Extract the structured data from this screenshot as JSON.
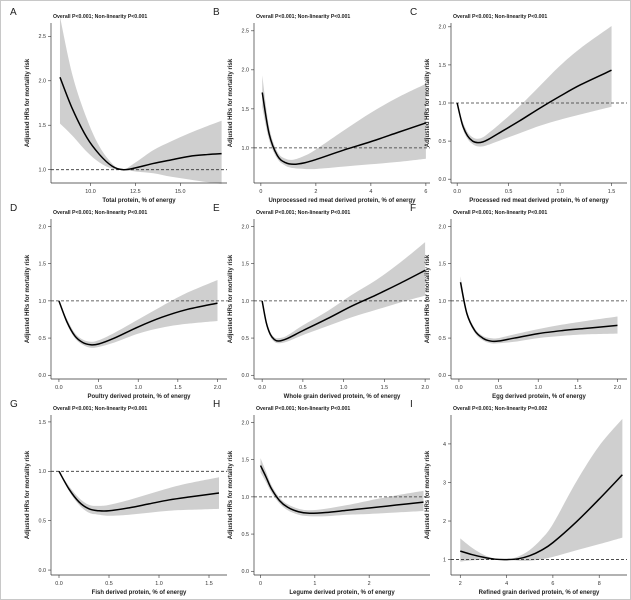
{
  "figure": {
    "ref_hr": 1.0,
    "colors": {
      "ci": "#cfcfcf",
      "curve": "#000000",
      "reference": "#333333"
    }
  },
  "chart_data": [
    {
      "type": "line",
      "panel": "A",
      "stat": "Overall P<0.001; Non-linearity P<0.001",
      "xlabel": "Total protein, % of energy",
      "ylabel": "Adjusted HRs for mortality risk",
      "xlim": [
        7.8,
        17.6
      ],
      "ylim": [
        0.85,
        2.65
      ],
      "xticks": [
        10.0,
        12.5,
        15.0
      ],
      "xtick_labels": [
        "10.0",
        "12.5",
        "15.0"
      ],
      "yticks": [
        1.0,
        1.5,
        2.0,
        2.5
      ],
      "ytick_labels": [
        "1.0",
        "1.5",
        "2.0",
        "2.5"
      ],
      "x": [
        8.3,
        9.0,
        9.8,
        10.5,
        11.2,
        11.8,
        12.5,
        13.5,
        14.5,
        15.5,
        16.5,
        17.3
      ],
      "hr": [
        2.04,
        1.68,
        1.36,
        1.17,
        1.04,
        1.0,
        1.02,
        1.07,
        1.11,
        1.15,
        1.17,
        1.18
      ],
      "lower": [
        1.52,
        1.38,
        1.2,
        1.08,
        1.01,
        1.0,
        0.98,
        0.96,
        0.92,
        0.89,
        0.86,
        0.84
      ],
      "upper": [
        2.72,
        2.06,
        1.57,
        1.26,
        1.07,
        1.0,
        1.08,
        1.22,
        1.32,
        1.41,
        1.49,
        1.55
      ]
    },
    {
      "type": "line",
      "panel": "B",
      "stat": "Overall P<0.001; Non-linearity P<0.001",
      "xlabel": "Unprocessed red meat derived protein, % of energy",
      "ylabel": "Adjusted HRs for mortality risk",
      "xlim": [
        -0.25,
        6.15
      ],
      "ylim": [
        0.55,
        2.6
      ],
      "xticks": [
        0,
        2,
        4,
        6
      ],
      "xtick_labels": [
        "0",
        "2",
        "4",
        "6"
      ],
      "yticks": [
        1.0,
        1.5,
        2.0,
        2.5
      ],
      "ytick_labels": [
        "1.0",
        "1.5",
        "2.0",
        "2.5"
      ],
      "x": [
        0.05,
        0.3,
        0.6,
        0.9,
        1.2,
        1.6,
        2.0,
        3.0,
        4.0,
        5.0,
        6.0
      ],
      "hr": [
        1.71,
        1.18,
        0.9,
        0.81,
        0.79,
        0.81,
        0.85,
        0.97,
        1.08,
        1.2,
        1.32
      ],
      "lower": [
        1.52,
        1.1,
        0.86,
        0.77,
        0.74,
        0.73,
        0.73,
        0.76,
        0.79,
        0.82,
        0.86
      ],
      "upper": [
        1.93,
        1.27,
        0.95,
        0.86,
        0.85,
        0.9,
        0.98,
        1.22,
        1.45,
        1.65,
        1.82
      ]
    },
    {
      "type": "line",
      "panel": "C",
      "stat": "Overall P<0.001; Non-linearity P<0.001",
      "xlabel": "Processed red meat derived protein, % of energy",
      "ylabel": "Adjusted HRs for mortality risk",
      "xlim": [
        -0.06,
        1.65
      ],
      "ylim": [
        -0.05,
        2.05
      ],
      "xticks": [
        0.0,
        0.5,
        1.0,
        1.5
      ],
      "xtick_labels": [
        "0.0",
        "0.5",
        "1.0",
        "1.5"
      ],
      "yticks": [
        0.0,
        0.5,
        1.0,
        1.5,
        2.0
      ],
      "ytick_labels": [
        "0.0",
        "0.5",
        "1.0",
        "1.5",
        "2.0"
      ],
      "x": [
        0.0,
        0.05,
        0.1,
        0.15,
        0.2,
        0.25,
        0.3,
        0.4,
        0.6,
        0.8,
        1.0,
        1.2,
        1.5
      ],
      "hr": [
        1.0,
        0.72,
        0.57,
        0.5,
        0.48,
        0.49,
        0.52,
        0.6,
        0.76,
        0.93,
        1.09,
        1.24,
        1.43
      ],
      "lower": [
        1.0,
        0.68,
        0.53,
        0.46,
        0.43,
        0.43,
        0.45,
        0.5,
        0.6,
        0.7,
        0.78,
        0.85,
        0.95
      ],
      "upper": [
        1.0,
        0.77,
        0.62,
        0.55,
        0.53,
        0.55,
        0.6,
        0.71,
        0.95,
        1.22,
        1.49,
        1.72,
        2.01
      ]
    },
    {
      "type": "line",
      "panel": "D",
      "stat": "Overall P<0.001; Non-linearity P<0.001",
      "xlabel": "Poultry derived protein, % of energy",
      "ylabel": "Adjusted HRs for mortality risk",
      "xlim": [
        -0.1,
        2.12
      ],
      "ylim": [
        -0.05,
        2.1
      ],
      "xticks": [
        0.0,
        0.5,
        1.0,
        1.5,
        2.0
      ],
      "xtick_labels": [
        "0.0",
        "0.5",
        "1.0",
        "1.5",
        "2.0"
      ],
      "yticks": [
        0.0,
        0.5,
        1.0,
        1.5,
        2.0
      ],
      "ytick_labels": [
        "0.0",
        "0.5",
        "1.0",
        "1.5",
        "2.0"
      ],
      "x": [
        0.0,
        0.1,
        0.2,
        0.3,
        0.4,
        0.5,
        0.7,
        1.0,
        1.3,
        1.6,
        2.0
      ],
      "hr": [
        1.0,
        0.72,
        0.53,
        0.44,
        0.41,
        0.42,
        0.5,
        0.65,
        0.78,
        0.88,
        0.97
      ],
      "lower": [
        1.0,
        0.69,
        0.5,
        0.41,
        0.37,
        0.38,
        0.44,
        0.56,
        0.64,
        0.69,
        0.73
      ],
      "upper": [
        1.0,
        0.76,
        0.57,
        0.48,
        0.45,
        0.47,
        0.57,
        0.75,
        0.93,
        1.1,
        1.28
      ]
    },
    {
      "type": "line",
      "panel": "E",
      "stat": "Overall P<0.001; Non-linearity P<0.001",
      "xlabel": "Whole grain derived protein, % of energy",
      "ylabel": "Adjusted HRs for mortality risk",
      "xlim": [
        -0.1,
        2.06
      ],
      "ylim": [
        -0.05,
        2.1
      ],
      "xticks": [
        0.0,
        0.5,
        1.0,
        1.5,
        2.0
      ],
      "xtick_labels": [
        "0.0",
        "0.5",
        "1.0",
        "1.5",
        "2.0"
      ],
      "yticks": [
        0.0,
        0.5,
        1.0,
        1.5,
        2.0
      ],
      "ytick_labels": [
        "0.0",
        "0.5",
        "1.0",
        "1.5",
        "2.0"
      ],
      "x": [
        0.0,
        0.05,
        0.1,
        0.15,
        0.2,
        0.3,
        0.5,
        0.8,
        1.1,
        1.4,
        1.7,
        2.0
      ],
      "hr": [
        1.0,
        0.71,
        0.55,
        0.48,
        0.46,
        0.49,
        0.6,
        0.76,
        0.93,
        1.08,
        1.24,
        1.41
      ],
      "lower": [
        1.0,
        0.68,
        0.52,
        0.45,
        0.43,
        0.45,
        0.54,
        0.66,
        0.78,
        0.88,
        0.98,
        1.07
      ],
      "upper": [
        1.0,
        0.74,
        0.58,
        0.51,
        0.5,
        0.53,
        0.67,
        0.86,
        1.08,
        1.28,
        1.52,
        1.79
      ]
    },
    {
      "type": "line",
      "panel": "F",
      "stat": "Overall P<0.001; Non-linearity P<0.001",
      "xlabel": "Egg derived protein, % of energy",
      "ylabel": "Adjusted HRs for mortality risk",
      "xlim": [
        -0.1,
        2.12
      ],
      "ylim": [
        -0.05,
        2.1
      ],
      "xticks": [
        0.0,
        0.5,
        1.0,
        1.5,
        2.0
      ],
      "xtick_labels": [
        "0.0",
        "0.5",
        "1.0",
        "1.5",
        "2.0"
      ],
      "yticks": [
        0.0,
        0.5,
        1.0,
        1.5,
        2.0
      ],
      "ytick_labels": [
        "0.0",
        "0.5",
        "1.0",
        "1.5",
        "2.0"
      ],
      "x": [
        0.02,
        0.1,
        0.2,
        0.3,
        0.4,
        0.5,
        0.7,
        1.0,
        1.3,
        1.6,
        2.0
      ],
      "hr": [
        1.25,
        0.83,
        0.6,
        0.5,
        0.46,
        0.46,
        0.5,
        0.56,
        0.6,
        0.63,
        0.67
      ],
      "lower": [
        1.18,
        0.8,
        0.57,
        0.47,
        0.43,
        0.43,
        0.45,
        0.5,
        0.53,
        0.55,
        0.56
      ],
      "upper": [
        1.33,
        0.87,
        0.63,
        0.53,
        0.5,
        0.5,
        0.55,
        0.62,
        0.68,
        0.73,
        0.79
      ]
    },
    {
      "type": "line",
      "panel": "G",
      "stat": "Overall P<0.001; Non-linearity P<0.001",
      "xlabel": "Fish derived protein, % of energy",
      "ylabel": "Adjusted HRs for mortality risk",
      "xlim": [
        -0.08,
        1.68
      ],
      "ylim": [
        -0.05,
        1.57
      ],
      "xticks": [
        0.0,
        0.5,
        1.0,
        1.5
      ],
      "xtick_labels": [
        "0.0",
        "0.5",
        "1.0",
        "1.5"
      ],
      "yticks": [
        0.0,
        0.5,
        1.0,
        1.5
      ],
      "ytick_labels": [
        "0.0",
        "0.5",
        "1.0",
        "1.5"
      ],
      "x": [
        0.0,
        0.1,
        0.2,
        0.3,
        0.4,
        0.5,
        0.7,
        0.9,
        1.1,
        1.3,
        1.6
      ],
      "hr": [
        1.0,
        0.82,
        0.69,
        0.62,
        0.6,
        0.6,
        0.63,
        0.67,
        0.71,
        0.74,
        0.78
      ],
      "lower": [
        1.0,
        0.8,
        0.66,
        0.58,
        0.56,
        0.55,
        0.56,
        0.58,
        0.6,
        0.61,
        0.62
      ],
      "upper": [
        1.0,
        0.85,
        0.73,
        0.66,
        0.65,
        0.66,
        0.71,
        0.77,
        0.83,
        0.88,
        0.94
      ]
    },
    {
      "type": "line",
      "panel": "H",
      "stat": "Overall P<0.001; Non-linearity P<0.001",
      "xlabel": "Legume derived protein, % of energy",
      "ylabel": "Adjusted HRs for mortality risk",
      "xlim": [
        -0.12,
        3.12
      ],
      "ylim": [
        -0.05,
        2.1
      ],
      "xticks": [
        0,
        1,
        2
      ],
      "xtick_labels": [
        "0",
        "1",
        "2"
      ],
      "yticks": [
        0.0,
        0.5,
        1.0,
        1.5,
        2.0
      ],
      "ytick_labels": [
        "0.0",
        "0.5",
        "1.0",
        "1.5",
        "2.0"
      ],
      "x": [
        0.0,
        0.1,
        0.2,
        0.35,
        0.5,
        0.7,
        0.9,
        1.2,
        1.6,
        2.0,
        2.5,
        3.0
      ],
      "hr": [
        1.42,
        1.27,
        1.11,
        0.95,
        0.86,
        0.8,
        0.78,
        0.79,
        0.82,
        0.85,
        0.89,
        0.93
      ],
      "lower": [
        1.33,
        1.2,
        1.06,
        0.91,
        0.82,
        0.76,
        0.74,
        0.74,
        0.76,
        0.77,
        0.79,
        0.81
      ],
      "upper": [
        1.52,
        1.34,
        1.16,
        0.99,
        0.9,
        0.84,
        0.82,
        0.84,
        0.89,
        0.95,
        1.02,
        1.08
      ]
    },
    {
      "type": "line",
      "panel": "I",
      "stat": "Overall P<0.001; Non-linearity P=0.002",
      "xlabel": "Refined grain derived protein, % of energy",
      "ylabel": "Adjusted HRs for mortality risk",
      "xlim": [
        1.6,
        9.2
      ],
      "ylim": [
        0.6,
        4.75
      ],
      "xticks": [
        2,
        4,
        6,
        8
      ],
      "xtick_labels": [
        "2",
        "4",
        "6",
        "8"
      ],
      "yticks": [
        1,
        2,
        3,
        4
      ],
      "ytick_labels": [
        "1",
        "2",
        "3",
        "4"
      ],
      "x": [
        2.0,
        2.5,
        3.0,
        3.5,
        4.0,
        4.5,
        5.0,
        5.5,
        6.0,
        7.0,
        8.0,
        9.0
      ],
      "hr": [
        1.22,
        1.13,
        1.06,
        1.01,
        1.0,
        1.02,
        1.1,
        1.24,
        1.44,
        1.97,
        2.57,
        3.2
      ],
      "lower": [
        0.95,
        0.98,
        1.0,
        1.0,
        1.0,
        0.97,
        0.97,
        1.01,
        1.07,
        1.24,
        1.4,
        1.57
      ],
      "upper": [
        1.55,
        1.31,
        1.13,
        1.02,
        1.0,
        1.08,
        1.25,
        1.53,
        1.92,
        3.01,
        3.95,
        4.65
      ]
    }
  ]
}
